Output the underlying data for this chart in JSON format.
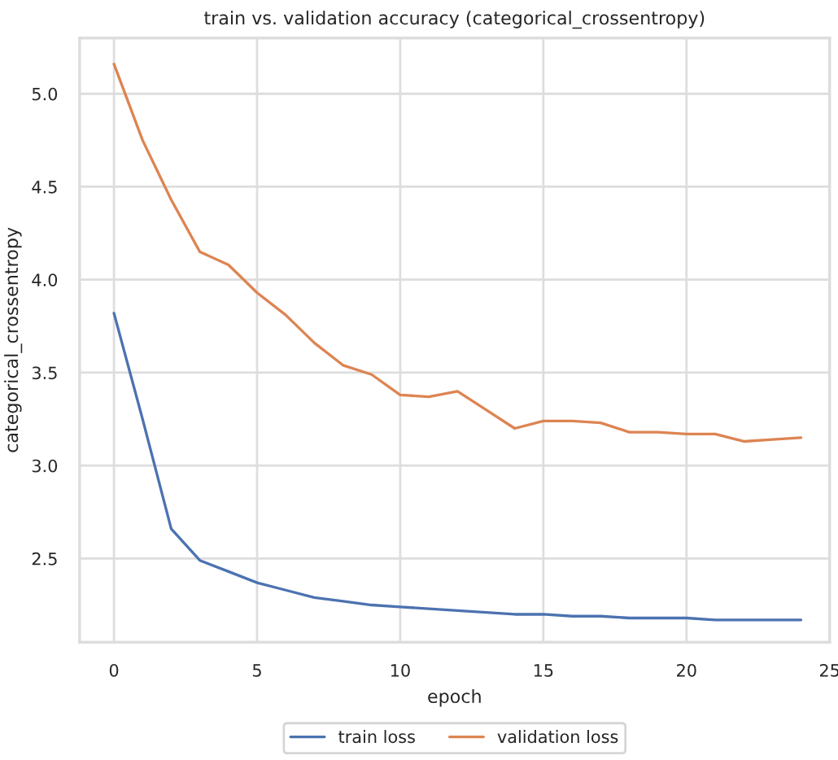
{
  "chart_data": {
    "type": "line",
    "title": "train vs. validation accuracy (categorical_crossentropy)",
    "xlabel": "epoch",
    "ylabel": "categorical_crossentropy",
    "x": [
      0,
      1,
      2,
      3,
      4,
      5,
      6,
      7,
      8,
      9,
      10,
      11,
      12,
      13,
      14,
      15,
      16,
      17,
      18,
      19,
      20,
      21,
      22,
      23,
      24
    ],
    "series": [
      {
        "name": "train loss",
        "color": "#4c72b0",
        "values": [
          3.82,
          3.25,
          2.66,
          2.49,
          2.43,
          2.37,
          2.33,
          2.29,
          2.27,
          2.25,
          2.24,
          2.23,
          2.22,
          2.21,
          2.2,
          2.2,
          2.19,
          2.19,
          2.18,
          2.18,
          2.18,
          2.17,
          2.17,
          2.17,
          2.17
        ]
      },
      {
        "name": "validation loss",
        "color": "#dd8452",
        "values": [
          5.16,
          4.75,
          4.43,
          4.15,
          4.08,
          3.93,
          3.81,
          3.66,
          3.54,
          3.49,
          3.38,
          3.37,
          3.4,
          3.3,
          3.2,
          3.24,
          3.24,
          3.23,
          3.18,
          3.18,
          3.17,
          3.17,
          3.13,
          3.14,
          3.15
        ]
      }
    ],
    "xlim": [
      -1.2,
      25.0
    ],
    "ylim": [
      2.05,
      5.3
    ],
    "xticks": [
      0,
      5,
      10,
      15,
      20,
      25
    ],
    "yticks": [
      2.5,
      {
        "value": 3,
        "label": "3.0"
      },
      3.5,
      {
        "value": 4,
        "label": "4.0"
      },
      4.5,
      {
        "value": 5,
        "label": "5.0"
      }
    ],
    "grid": true,
    "legend": "bottom",
    "line_style": "solid",
    "marker": "none"
  }
}
